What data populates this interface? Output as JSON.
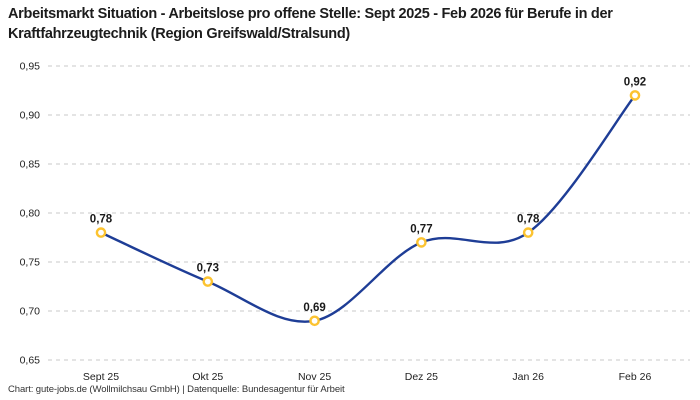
{
  "header": {
    "title": "Arbeitsmarkt Situation - Arbeitslose pro offene Stelle: Sept 2025 - Feb 2026 für Berufe in der Kraftfahrzeugtechnik (Region Greifswald/Stralsund)"
  },
  "footer": {
    "credit": "Chart: gute-jobs.de (Wollmilchsau GmbH) | Datenquelle: Bundesagentur für Arbeit"
  },
  "chart_data": {
    "type": "line",
    "title": "Arbeitsmarkt Situation - Arbeitslose pro offene Stelle: Sept 2025 - Feb 2026 für Berufe in der Kraftfahrzeugtechnik (Region Greifswald/Stralsund)",
    "categories": [
      "Sept 25",
      "Okt 25",
      "Nov 25",
      "Dez 25",
      "Jan 26",
      "Feb 26"
    ],
    "values": [
      0.78,
      0.73,
      0.69,
      0.77,
      0.78,
      0.92
    ],
    "point_labels": [
      "0,78",
      "0,73",
      "0,69",
      "0,77",
      "0,78",
      "0,92"
    ],
    "xlabel": "",
    "ylabel": "",
    "ylim": [
      0.65,
      0.95
    ],
    "ytick_values": [
      0.95,
      0.9,
      0.85,
      0.8,
      0.75,
      0.7,
      0.65
    ],
    "ytick_labels": [
      "0,95",
      "0,90",
      "0,85",
      "0,80",
      "0,75",
      "0,70",
      "0,65"
    ],
    "grid": "horizontal-dashed",
    "legend": "none",
    "line_color": "#1e3d96",
    "marker_color": "#fcc330",
    "marker_fill": "#ffffff",
    "grid_color": "#c9c9c9"
  }
}
